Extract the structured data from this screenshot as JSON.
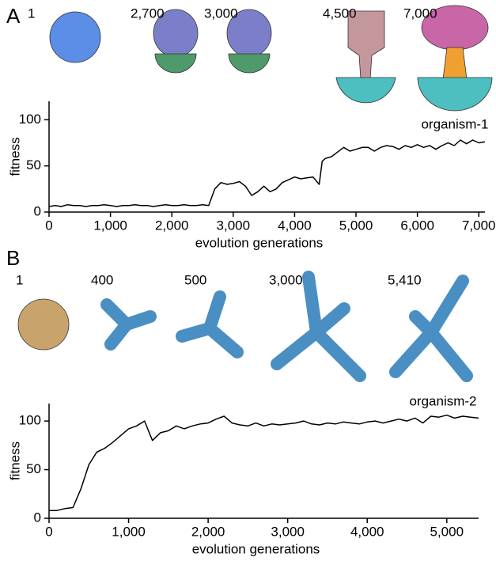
{
  "chart_data": [
    {
      "type": "line",
      "panel": "A",
      "annotation": "organism-1",
      "snapshots": [
        "1",
        "2,700",
        "3,000",
        "4,500",
        "7,000"
      ],
      "xlabel": "evolution generations",
      "ylabel": "fitness",
      "color": "#000000",
      "x": [
        0,
        100,
        200,
        300,
        400,
        500,
        600,
        700,
        800,
        900,
        1000,
        1100,
        1200,
        1300,
        1400,
        1500,
        1600,
        1700,
        1800,
        1900,
        2000,
        2100,
        2200,
        2300,
        2400,
        2500,
        2600,
        2700,
        2800,
        2900,
        3000,
        3100,
        3200,
        3300,
        3400,
        3500,
        3600,
        3700,
        3800,
        3900,
        4000,
        4100,
        4200,
        4300,
        4400,
        4450,
        4500,
        4600,
        4700,
        4800,
        4900,
        5000,
        5100,
        5200,
        5300,
        5400,
        5500,
        5600,
        5700,
        5800,
        5900,
        6000,
        6100,
        6200,
        6300,
        6400,
        6500,
        6600,
        6700,
        6800,
        6900,
        7000,
        7100
      ],
      "values": [
        6,
        7,
        6,
        8,
        7,
        7,
        6,
        7,
        7,
        8,
        7,
        6,
        7,
        7,
        8,
        7,
        7,
        6,
        7,
        8,
        7,
        7,
        8,
        7,
        7,
        8,
        7,
        25,
        32,
        30,
        31,
        33,
        28,
        18,
        22,
        28,
        22,
        25,
        32,
        35,
        38,
        36,
        37,
        38,
        30,
        55,
        58,
        60,
        65,
        70,
        66,
        68,
        70,
        70,
        66,
        70,
        72,
        71,
        68,
        72,
        70,
        73,
        70,
        72,
        68,
        72,
        75,
        72,
        78,
        74,
        78,
        75,
        76
      ],
      "xlim": [
        0,
        7100
      ],
      "ylim": [
        0,
        120
      ],
      "xticks": [
        0,
        {
          "value": 1000,
          "label": "1,000"
        },
        {
          "value": 2000,
          "label": "2,000"
        },
        {
          "value": 3000,
          "label": "3,000"
        },
        {
          "value": 4000,
          "label": "4,000"
        },
        {
          "value": 5000,
          "label": "5,000"
        },
        {
          "value": 6000,
          "label": "6,000"
        },
        {
          "value": 7000,
          "label": "7,000"
        }
      ],
      "yticks": [
        0,
        50,
        100
      ]
    },
    {
      "type": "line",
      "panel": "B",
      "annotation": "organism-2",
      "snapshots": [
        "1",
        "400",
        "500",
        "3,000",
        "5,410"
      ],
      "xlabel": "evolution generations",
      "ylabel": "fitness",
      "color": "#000000",
      "x": [
        0,
        100,
        200,
        300,
        400,
        500,
        600,
        700,
        800,
        900,
        1000,
        1100,
        1200,
        1300,
        1400,
        1500,
        1600,
        1700,
        1800,
        1900,
        2000,
        2100,
        2200,
        2300,
        2400,
        2500,
        2600,
        2700,
        2800,
        2900,
        3000,
        3100,
        3200,
        3300,
        3400,
        3500,
        3600,
        3700,
        3800,
        3900,
        4000,
        4100,
        4200,
        4300,
        4400,
        4500,
        4600,
        4700,
        4800,
        4900,
        5000,
        5100,
        5200,
        5300,
        5400
      ],
      "values": [
        8,
        8,
        10,
        11,
        30,
        55,
        68,
        72,
        78,
        85,
        92,
        95,
        100,
        80,
        88,
        90,
        95,
        92,
        95,
        97,
        98,
        102,
        105,
        98,
        96,
        95,
        98,
        95,
        97,
        96,
        97,
        98,
        100,
        97,
        96,
        98,
        97,
        99,
        98,
        97,
        99,
        100,
        98,
        100,
        102,
        100,
        103,
        98,
        105,
        104,
        106,
        103,
        105,
        104,
        103
      ],
      "xlim": [
        0,
        5400
      ],
      "ylim": [
        0,
        118
      ],
      "xticks": [
        0,
        {
          "value": 1000,
          "label": "1,000"
        },
        {
          "value": 2000,
          "label": "2,000"
        },
        {
          "value": 3000,
          "label": "3,000"
        },
        {
          "value": 4000,
          "label": "4,000"
        },
        {
          "value": 5000,
          "label": "5,000"
        }
      ],
      "yticks": [
        0,
        50,
        100
      ]
    }
  ]
}
